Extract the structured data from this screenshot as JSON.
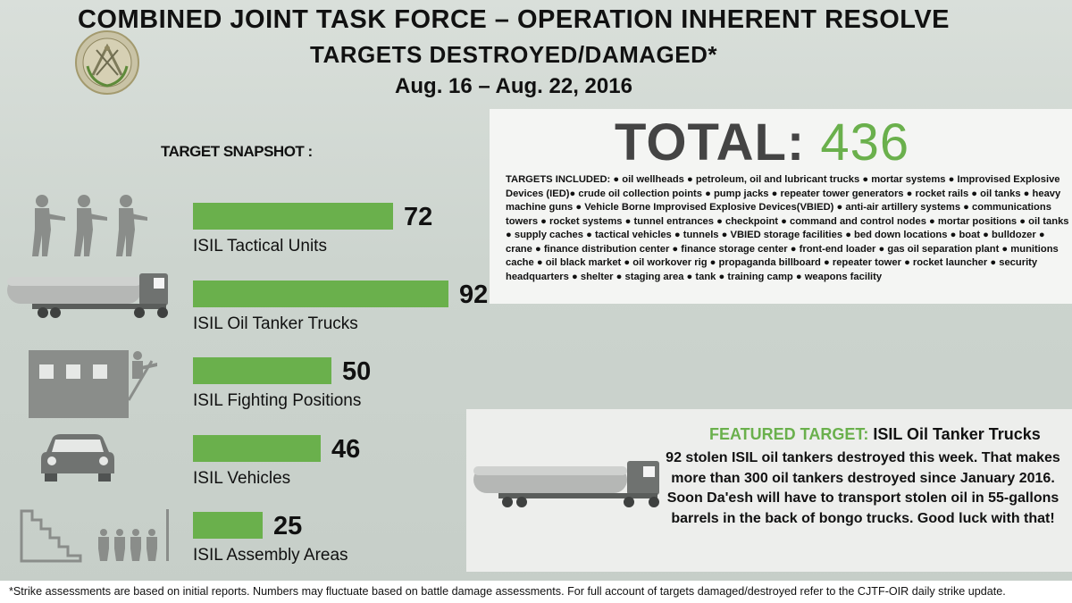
{
  "header": {
    "title": "COMBINED JOINT TASK FORCE – OPERATION INHERENT RESOLVE",
    "subtitle": "TARGETS DESTROYED/DAMAGED*",
    "date_range": "Aug. 16 – Aug. 22,  2016"
  },
  "snapshot": {
    "title": "TARGET SNAPSHOT :"
  },
  "chart_data": {
    "type": "bar",
    "title": "TARGET SNAPSHOT :",
    "categories": [
      "ISIL Tactical Units",
      "ISIL Oil Tanker Trucks",
      "ISIL Fighting Positions",
      "ISIL Vehicles",
      "ISIL Assembly Areas"
    ],
    "values": [
      72,
      92,
      50,
      46,
      25
    ],
    "icons": [
      "soldiers-icon",
      "oil-tanker-truck-icon",
      "fighting-position-icon",
      "vehicle-icon",
      "assembly-area-icon"
    ],
    "orientation": "horizontal",
    "bar_color": "#6ab04c",
    "xlim": [
      0,
      92
    ]
  },
  "total": {
    "label": "TOTAL:",
    "value": "436"
  },
  "targets_included": {
    "label": "TARGETS INCLUDED:",
    "text": "● oil wellheads ● petroleum, oil and lubricant trucks ● mortar systems ● Improvised Explosive Devices (IED)● crude oil collection points ● pump jacks ● repeater tower generators ● rocket rails ● oil tanks ● heavy machine guns ● Vehicle Borne Improvised Explosive Devices(VBIED) ● anti-air artillery systems ● communications towers ● rocket systems ● tunnel entrances ● checkpoint ● command and control nodes ● mortar positions ● oil tanks ● supply caches ● tactical vehicles ● tunnels ● VBIED storage facilities ● bed down locations ● boat ● bulldozer ● crane ● finance distribution center ● finance storage center ● front-end loader ● gas oil separation plant ● munitions cache ● oil black market ● oil workover rig ● propaganda billboard ● repeater tower ● rocket launcher ● security headquarters ● shelter ● staging area ● tank ● training camp ● weapons facility"
  },
  "featured": {
    "label": "FEATURED TARGET:",
    "target": "ISIL Oil Tanker Trucks",
    "body": "92 stolen ISIL oil tankers destroyed this week.  That makes more than 300 oil tankers destroyed since January 2016. Soon Da'esh will have to transport  stolen oil in 55-gallons barrels in the back of bongo trucks. Good luck with that!"
  },
  "footer": {
    "text": "*Strike assessments are based on initial reports. Numbers may fluctuate based on battle damage assessments. For full account of targets damaged/destroyed refer to the CJTF-OIR daily strike update."
  },
  "colors": {
    "accent": "#6ab04c",
    "icon_gray": "#8a8d8a",
    "background": "#cdd5cf"
  }
}
